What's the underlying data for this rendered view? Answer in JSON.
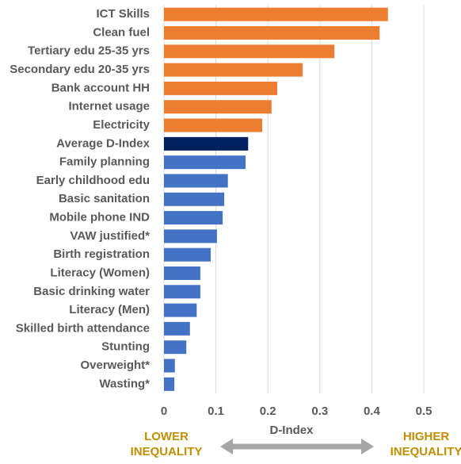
{
  "chart_data": {
    "type": "hbar",
    "categories": [
      "ICT Skills",
      "Clean fuel",
      "Tertiary edu 25-35 yrs",
      "Secondary edu 20-35 yrs",
      "Bank account HH",
      "Internet usage",
      "Electricity",
      "Average D-Index",
      "Family planning",
      "Early childhood edu",
      "Basic sanitation",
      "Mobile phone IND",
      "VAW justified*",
      "Birth registration",
      "Literacy (Women)",
      "Basic drinking water",
      "Literacy (Men)",
      "Skilled birth attendance",
      "Stunting",
      "Overweight*",
      "Wasting*"
    ],
    "values": [
      0.431,
      0.415,
      0.328,
      0.267,
      0.218,
      0.207,
      0.189,
      0.162,
      0.157,
      0.123,
      0.116,
      0.113,
      0.102,
      0.09,
      0.07,
      0.07,
      0.063,
      0.05,
      0.043,
      0.021,
      0.02
    ],
    "colors": [
      "#ED7D31",
      "#ED7D31",
      "#ED7D31",
      "#ED7D31",
      "#ED7D31",
      "#ED7D31",
      "#ED7D31",
      "#002060",
      "#4472C4",
      "#4472C4",
      "#4472C4",
      "#4472C4",
      "#4472C4",
      "#4472C4",
      "#4472C4",
      "#4472C4",
      "#4472C4",
      "#4472C4",
      "#4472C4",
      "#4472C4",
      "#4472C4"
    ],
    "xlim": [
      0,
      0.5
    ],
    "xticks": [
      0,
      0.1,
      0.2,
      0.3,
      0.4,
      0.5
    ],
    "grid": true,
    "x_label": "D-Index",
    "annotations": [
      "LOWER INEQUALITY",
      "HIGHER INEQUALITY"
    ]
  }
}
